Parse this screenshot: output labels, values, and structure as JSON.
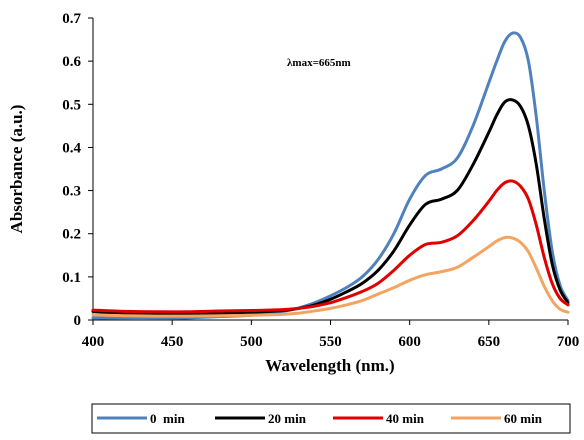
{
  "chart_data": {
    "type": "line",
    "xlabel": "Wavelength (nm.)",
    "ylabel": "Absorbance (a.u.)",
    "xlim": [
      400,
      700
    ],
    "ylim": [
      0,
      0.7
    ],
    "x_ticks": [
      400,
      450,
      500,
      550,
      600,
      650,
      700
    ],
    "y_ticks": [
      0,
      0.1,
      0.2,
      0.3,
      0.4,
      0.5,
      0.6,
      0.7
    ],
    "x_tick_labels": [
      "400",
      "450",
      "500",
      "550",
      "600",
      "650",
      "700"
    ],
    "y_tick_labels": [
      "0",
      "0.1",
      "0.2",
      "0.3",
      "0.4",
      "0.5",
      "0.6",
      "0.7"
    ],
    "grid": false,
    "legend_position": "bottom",
    "annotation": "λmax=665nm",
    "x": [
      400,
      420,
      440,
      460,
      480,
      500,
      520,
      530,
      540,
      550,
      560,
      570,
      580,
      590,
      600,
      610,
      620,
      630,
      640,
      650,
      655,
      660,
      665,
      670,
      675,
      680,
      685,
      690,
      695,
      700
    ],
    "series": [
      {
        "name": "0  min",
        "color": "#4F81BD",
        "values": [
          0.005,
          0.004,
          0.004,
          0.005,
          0.008,
          0.011,
          0.02,
          0.028,
          0.04,
          0.056,
          0.075,
          0.1,
          0.14,
          0.2,
          0.28,
          0.335,
          0.35,
          0.375,
          0.45,
          0.55,
          0.6,
          0.645,
          0.665,
          0.655,
          0.6,
          0.47,
          0.3,
          0.16,
          0.08,
          0.045
        ]
      },
      {
        "name": "20 min",
        "color": "#000000",
        "values": [
          0.02,
          0.014,
          0.013,
          0.014,
          0.016,
          0.018,
          0.022,
          0.027,
          0.035,
          0.048,
          0.065,
          0.085,
          0.115,
          0.16,
          0.22,
          0.268,
          0.28,
          0.3,
          0.36,
          0.435,
          0.475,
          0.505,
          0.51,
          0.495,
          0.45,
          0.36,
          0.235,
          0.13,
          0.07,
          0.04
        ]
      },
      {
        "name": "40 min",
        "color": "#E00000",
        "values": [
          0.023,
          0.02,
          0.019,
          0.019,
          0.021,
          0.022,
          0.024,
          0.027,
          0.032,
          0.04,
          0.052,
          0.066,
          0.085,
          0.115,
          0.15,
          0.175,
          0.18,
          0.195,
          0.23,
          0.275,
          0.3,
          0.318,
          0.322,
          0.31,
          0.28,
          0.22,
          0.145,
          0.085,
          0.05,
          0.035
        ]
      },
      {
        "name": "60 min",
        "color": "#F4A460",
        "values": [
          0.012,
          0.01,
          0.009,
          0.009,
          0.01,
          0.011,
          0.013,
          0.016,
          0.021,
          0.027,
          0.035,
          0.045,
          0.06,
          0.075,
          0.092,
          0.105,
          0.112,
          0.122,
          0.145,
          0.17,
          0.183,
          0.191,
          0.19,
          0.18,
          0.158,
          0.12,
          0.078,
          0.045,
          0.025,
          0.018
        ]
      }
    ]
  }
}
